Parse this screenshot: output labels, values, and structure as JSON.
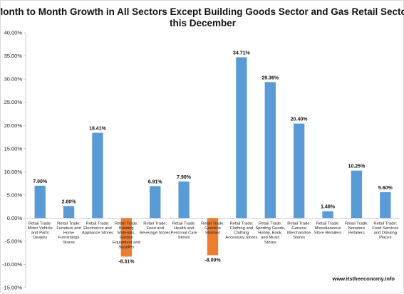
{
  "chart_data": {
    "type": "bar",
    "title_lines": [
      "Month to Month Growth in All Sectors Except Building Goods Sector and Gas Retail Sector",
      "this December"
    ],
    "categories": [
      [
        "Retail Trade:",
        "Motor Vehicle",
        "and Parts",
        "Dealers"
      ],
      [
        "Retail Trade:",
        "Furniture and",
        "Home",
        "Furnishings",
        "Stores"
      ],
      [
        "Retail Trade:",
        "Electronics and",
        "Appliance Stores"
      ],
      [
        "Retail Trade:",
        "Building",
        "Materials,",
        "Garden",
        "Equipment and",
        "Supplies"
      ],
      [
        "Retail Trade:",
        "Food and",
        "Beverage Stores"
      ],
      [
        "Retail Trade:",
        "Health and",
        "Personal Care",
        "Stores"
      ],
      [
        "Retail Trade:",
        "Gasoline",
        "Stations"
      ],
      [
        "Retail Trade:",
        "Clothing and",
        "Clothing",
        "Accessory Stores"
      ],
      [
        "Retail Trade:",
        "Sporting Goods,",
        "Hobby, Book,",
        "and Music",
        "Stores"
      ],
      [
        "Retail Trade:",
        "General",
        "Merchandise",
        "Stores"
      ],
      [
        "Retail Trade:",
        "Miscellaneous",
        "Store Retailers"
      ],
      [
        "Retail Trade:",
        "Nonstore",
        "Retailers"
      ],
      [
        "Retail Trade:",
        "Food Services",
        "and Drinking",
        "Places"
      ]
    ],
    "values": [
      7.0,
      2.6,
      18.41,
      -8.31,
      6.91,
      7.9,
      -8.0,
      34.71,
      29.36,
      20.4,
      1.48,
      10.25,
      5.6
    ],
    "data_labels": [
      "7.00%",
      "2.60%",
      "18.41%",
      "-8.31%",
      "6.91%",
      "7.90%",
      "-8.00%",
      "34.71%",
      "29.36%",
      "20.40%",
      "1.48%",
      "10.25%",
      "5.60%"
    ],
    "y_ticks": [
      "40.00%",
      "35.00%",
      "30.00%",
      "25.00%",
      "20.00%",
      "15.00%",
      "10.00%",
      "5.00%",
      "0.00%",
      "-5.00%",
      "-10.00%",
      "-15.00%"
    ],
    "ylim": [
      -15,
      40
    ],
    "colors": {
      "positive": "#5b9bd5",
      "negative": "#ed7d31"
    },
    "annotation": "www.itstheeconomy.info"
  }
}
